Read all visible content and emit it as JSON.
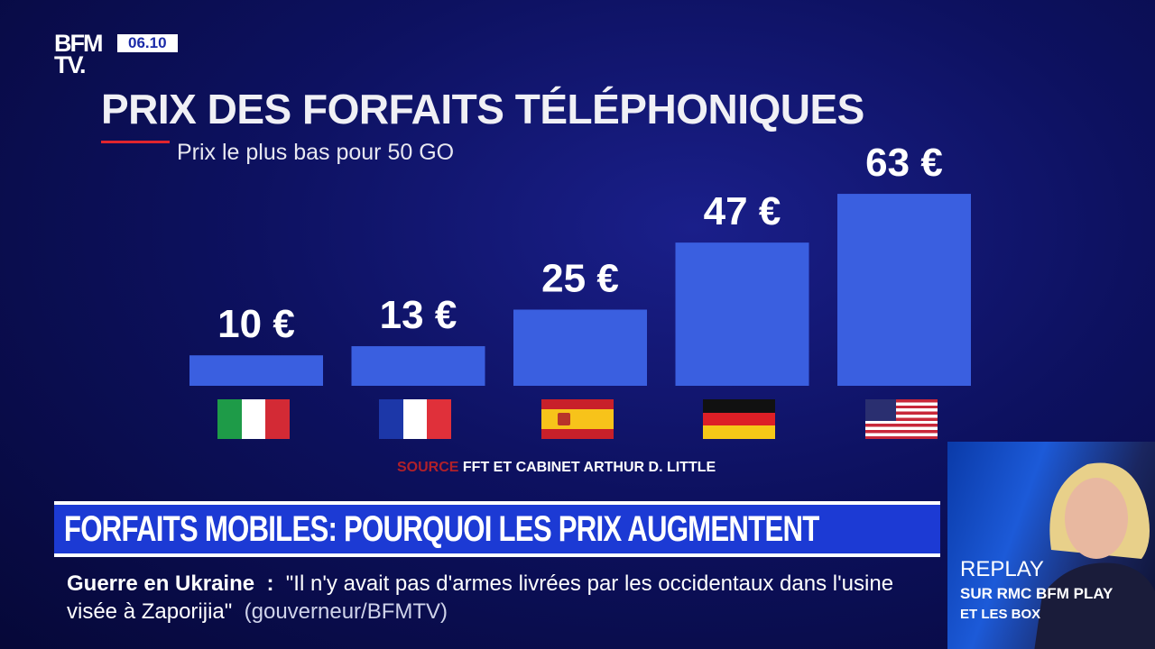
{
  "channel": {
    "logo": "BFM TV.",
    "time": "06.10"
  },
  "chart_data": {
    "type": "bar",
    "title": "PRIX DES FORFAITS TÉLÉPHONIQUES",
    "subtitle": "Prix le plus bas pour 50 GO",
    "categories": [
      "Italie",
      "France",
      "Espagne",
      "Allemagne",
      "États-Unis"
    ],
    "values": [
      10,
      13,
      25,
      47,
      63
    ],
    "data_labels": [
      "10 €",
      "13 €",
      "25 €",
      "47 €",
      "63 €"
    ],
    "unit": "€",
    "bar_color": "#3a5fe0",
    "source_label": "SOURCE",
    "source_text": "FFT ET CABINET ARTHUR D. LITTLE"
  },
  "headline": "FORFAITS MOBILES: POURQUOI LES PRIX AUGMENTENT",
  "ticker": {
    "topic": "Guerre en Ukraine",
    "separator": ":",
    "quote": "\"Il n'y avait pas d'armes livrées par les occidentaux dans l'usine visée à Zaporijia\"",
    "attribution": "(gouverneur/BFMTV)"
  },
  "promo": {
    "line1": "REPLAY",
    "line2": "SUR RMC BFM PLAY",
    "line3": "ET LES BOX"
  }
}
